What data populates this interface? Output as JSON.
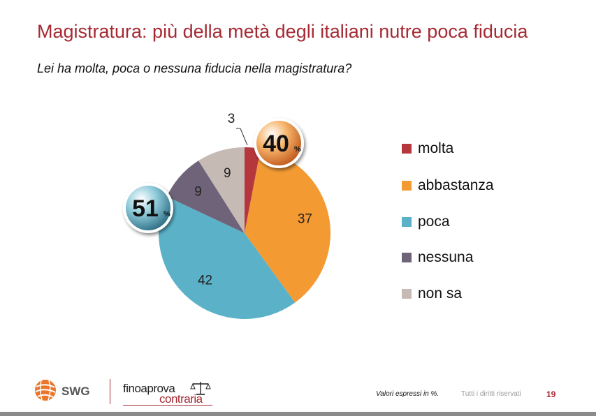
{
  "title": "Magistratura: più della metà degli italiani nutre poca fiducia",
  "subtitle": "Lei ha molta, poca o nessuna fiducia nella magistratura?",
  "chart_data": {
    "type": "pie",
    "slices": [
      {
        "name": "molta",
        "value": 3,
        "color": "#B5373D"
      },
      {
        "name": "abbastanza",
        "value": 37,
        "color": "#F39A33"
      },
      {
        "name": "poca",
        "value": 42,
        "color": "#5BB2C8"
      },
      {
        "name": "nessuna",
        "value": 9,
        "color": "#6E6378"
      },
      {
        "name": "non sa",
        "value": 9,
        "color": "#C6BAB5"
      }
    ],
    "badges": [
      {
        "value": "40",
        "unit": "%",
        "color": "#E07A2E"
      },
      {
        "value": "51",
        "unit": "%",
        "color": "#4B9AB2"
      }
    ],
    "legend_position": "right"
  },
  "footer": {
    "note": "Valori espressi in %.",
    "rights": "Tutti i diritti riservati",
    "page": "19"
  },
  "logos": {
    "swg": "SWG",
    "partner_line1": "finoaprova",
    "partner_line2": "contraria"
  }
}
